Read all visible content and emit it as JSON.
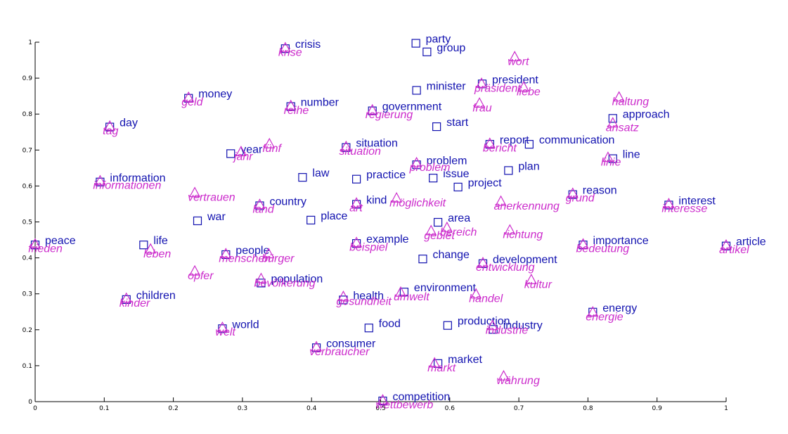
{
  "chart_data": {
    "type": "scatter",
    "title": "",
    "xlabel": "",
    "ylabel": "",
    "xlim": [
      0,
      1
    ],
    "ylim": [
      0,
      1
    ],
    "xticks": [
      "0",
      "0.1",
      "0.2",
      "0.3",
      "0.4",
      "0.5",
      "0.6",
      "0.7",
      "0.8",
      "0.9",
      "1"
    ],
    "yticks": [
      "0",
      "0.1",
      "0.2",
      "0.3",
      "0.4",
      "0.5",
      "0.6",
      "0.7",
      "0.8",
      "0.9",
      "1"
    ],
    "grid": false,
    "colors": {
      "english": "#1212b0",
      "german": "#cc2ccc"
    },
    "markers": {
      "english": "square",
      "german": "triangle"
    },
    "series": [
      {
        "points": [
          {
            "label": "party",
            "x": 0.551,
            "y": 0.997
          },
          {
            "label": "group",
            "x": 0.567,
            "y": 0.973
          },
          {
            "label": "crisis",
            "x": 0.362,
            "y": 0.982
          },
          {
            "label": "president",
            "x": 0.647,
            "y": 0.884
          },
          {
            "label": "minister",
            "x": 0.552,
            "y": 0.866
          },
          {
            "label": "money",
            "x": 0.222,
            "y": 0.844
          },
          {
            "label": "number",
            "x": 0.37,
            "y": 0.821
          },
          {
            "label": "government",
            "x": 0.488,
            "y": 0.809
          },
          {
            "label": "approach",
            "x": 0.836,
            "y": 0.788
          },
          {
            "label": "start",
            "x": 0.581,
            "y": 0.765
          },
          {
            "label": "day",
            "x": 0.108,
            "y": 0.764
          },
          {
            "label": "report",
            "x": 0.658,
            "y": 0.716
          },
          {
            "label": "communication",
            "x": 0.715,
            "y": 0.716
          },
          {
            "label": "situation",
            "x": 0.45,
            "y": 0.707
          },
          {
            "label": "year",
            "x": 0.283,
            "y": 0.69
          },
          {
            "label": "line",
            "x": 0.836,
            "y": 0.676
          },
          {
            "label": "problem",
            "x": 0.552,
            "y": 0.659
          },
          {
            "label": "plan",
            "x": 0.685,
            "y": 0.643
          },
          {
            "label": "law",
            "x": 0.387,
            "y": 0.624
          },
          {
            "label": "practice",
            "x": 0.465,
            "y": 0.619
          },
          {
            "label": "issue",
            "x": 0.576,
            "y": 0.622
          },
          {
            "label": "information",
            "x": 0.094,
            "y": 0.611
          },
          {
            "label": "project",
            "x": 0.612,
            "y": 0.597
          },
          {
            "label": "reason",
            "x": 0.778,
            "y": 0.576
          },
          {
            "label": "interest",
            "x": 0.917,
            "y": 0.547
          },
          {
            "label": "country",
            "x": 0.325,
            "y": 0.545
          },
          {
            "label": "kind",
            "x": 0.465,
            "y": 0.549
          },
          {
            "label": "place",
            "x": 0.399,
            "y": 0.505
          },
          {
            "label": "war",
            "x": 0.235,
            "y": 0.503
          },
          {
            "label": "area",
            "x": 0.583,
            "y": 0.499
          },
          {
            "label": "peace",
            "x": 0.0,
            "y": 0.436
          },
          {
            "label": "life",
            "x": 0.157,
            "y": 0.436
          },
          {
            "label": "example",
            "x": 0.465,
            "y": 0.44
          },
          {
            "label": "importance",
            "x": 0.793,
            "y": 0.436
          },
          {
            "label": "article",
            "x": 1.0,
            "y": 0.433
          },
          {
            "label": "people",
            "x": 0.276,
            "y": 0.409
          },
          {
            "label": "change",
            "x": 0.561,
            "y": 0.397
          },
          {
            "label": "development",
            "x": 0.648,
            "y": 0.384
          },
          {
            "label": "population",
            "x": 0.327,
            "y": 0.33
          },
          {
            "label": "environment",
            "x": 0.534,
            "y": 0.305
          },
          {
            "label": "health",
            "x": 0.446,
            "y": 0.283
          },
          {
            "label": "children",
            "x": 0.132,
            "y": 0.284
          },
          {
            "label": "energy",
            "x": 0.807,
            "y": 0.249
          },
          {
            "label": "food",
            "x": 0.483,
            "y": 0.205
          },
          {
            "label": "production",
            "x": 0.597,
            "y": 0.212
          },
          {
            "label": "industry",
            "x": 0.663,
            "y": 0.201
          },
          {
            "label": "world",
            "x": 0.271,
            "y": 0.203
          },
          {
            "label": "consumer",
            "x": 0.407,
            "y": 0.15
          },
          {
            "label": "market",
            "x": 0.583,
            "y": 0.106
          },
          {
            "label": "competition",
            "x": 0.503,
            "y": 0.002
          }
        ]
      },
      {
        "points": [
          {
            "label": "krise",
            "x": 0.362,
            "y": 0.985
          },
          {
            "label": "wort",
            "x": 0.694,
            "y": 0.96
          },
          {
            "label": "präsident",
            "x": 0.646,
            "y": 0.886
          },
          {
            "label": "liebe",
            "x": 0.707,
            "y": 0.876
          },
          {
            "label": "geld",
            "x": 0.222,
            "y": 0.847
          },
          {
            "label": "haltung",
            "x": 0.845,
            "y": 0.848
          },
          {
            "label": "reihe",
            "x": 0.37,
            "y": 0.824
          },
          {
            "label": "frau",
            "x": 0.643,
            "y": 0.831
          },
          {
            "label": "regierung",
            "x": 0.488,
            "y": 0.812
          },
          {
            "label": "ansatz",
            "x": 0.836,
            "y": 0.776
          },
          {
            "label": "tag",
            "x": 0.108,
            "y": 0.767
          },
          {
            "label": "bericht",
            "x": 0.658,
            "y": 0.719
          },
          {
            "label": "fünf",
            "x": 0.339,
            "y": 0.718
          },
          {
            "label": "situation",
            "x": 0.45,
            "y": 0.71
          },
          {
            "label": "jahr",
            "x": 0.298,
            "y": 0.696
          },
          {
            "label": "linie",
            "x": 0.829,
            "y": 0.68
          },
          {
            "label": "problem",
            "x": 0.552,
            "y": 0.665
          },
          {
            "label": "informationen",
            "x": 0.094,
            "y": 0.615
          },
          {
            "label": "vertrauen",
            "x": 0.231,
            "y": 0.582
          },
          {
            "label": "grund",
            "x": 0.778,
            "y": 0.58
          },
          {
            "label": "möglichkeit",
            "x": 0.523,
            "y": 0.567
          },
          {
            "label": "anerkennung",
            "x": 0.674,
            "y": 0.558
          },
          {
            "label": "land",
            "x": 0.325,
            "y": 0.549
          },
          {
            "label": "art",
            "x": 0.465,
            "y": 0.553
          },
          {
            "label": "interesse",
            "x": 0.917,
            "y": 0.551
          },
          {
            "label": "bereich",
            "x": 0.596,
            "y": 0.485
          },
          {
            "label": "gebiet",
            "x": 0.573,
            "y": 0.476
          },
          {
            "label": "richtung",
            "x": 0.687,
            "y": 0.478
          },
          {
            "label": "frieden",
            "x": 0.0,
            "y": 0.439
          },
          {
            "label": "leben",
            "x": 0.167,
            "y": 0.425
          },
          {
            "label": "beispiel",
            "x": 0.465,
            "y": 0.443
          },
          {
            "label": "bedeutung",
            "x": 0.793,
            "y": 0.439
          },
          {
            "label": "artikel",
            "x": 1.0,
            "y": 0.436
          },
          {
            "label": "bürger",
            "x": 0.338,
            "y": 0.412
          },
          {
            "label": "menschen",
            "x": 0.276,
            "y": 0.412
          },
          {
            "label": "entwicklung",
            "x": 0.648,
            "y": 0.387
          },
          {
            "label": "opfer",
            "x": 0.231,
            "y": 0.364
          },
          {
            "label": "bevölkerung",
            "x": 0.327,
            "y": 0.343
          },
          {
            "label": "kultur",
            "x": 0.718,
            "y": 0.34
          },
          {
            "label": "umwelt",
            "x": 0.529,
            "y": 0.305
          },
          {
            "label": "gesundheit",
            "x": 0.446,
            "y": 0.293
          },
          {
            "label": "handel",
            "x": 0.638,
            "y": 0.3
          },
          {
            "label": "kinder",
            "x": 0.132,
            "y": 0.288
          },
          {
            "label": "energie",
            "x": 0.807,
            "y": 0.25
          },
          {
            "label": "industrie",
            "x": 0.662,
            "y": 0.212
          },
          {
            "label": "welt",
            "x": 0.271,
            "y": 0.207
          },
          {
            "label": "verbraucher",
            "x": 0.407,
            "y": 0.153
          },
          {
            "label": "markt",
            "x": 0.578,
            "y": 0.108
          },
          {
            "label": "währung",
            "x": 0.678,
            "y": 0.072
          },
          {
            "label": "wettbewerb",
            "x": 0.503,
            "y": 0.005
          }
        ]
      }
    ]
  }
}
